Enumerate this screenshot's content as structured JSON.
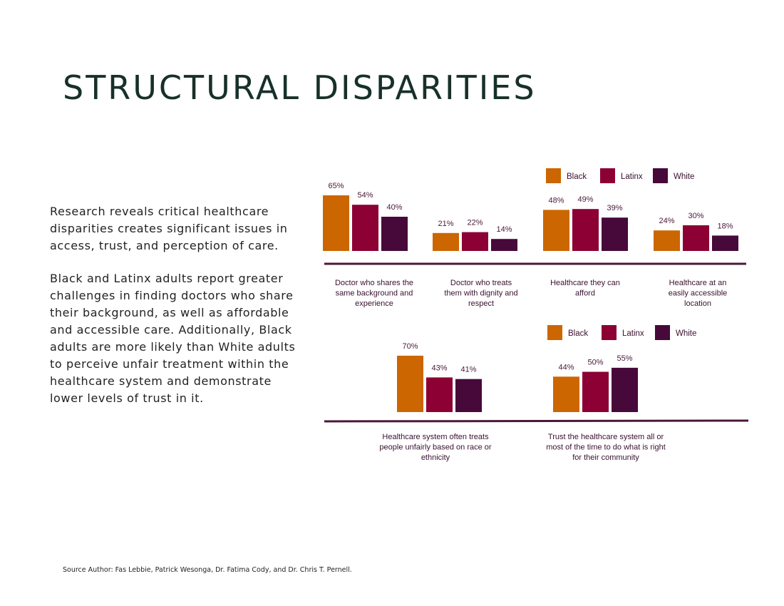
{
  "title": "STRUCTURAL DISPARITIES",
  "paragraphs": [
    "Research reveals critical healthcare disparities creates significant issues in access, trust, and perception of care.",
    "Black and Latinx adults report greater challenges in finding doctors who share their background, as well as affordable and accessible care. Additionally, Black adults are more likely than White adults to perceive unfair treatment within the healthcare system and demonstrate lower levels of trust in it."
  ],
  "source": "Source Author: Fas Lebbie, Patrick Wesonga, Dr. Fatima Cody, and Dr. Chris T. Pernell.",
  "colors": {
    "Black": "#cc6600",
    "Latinx": "#8c0034",
    "White": "#47083a",
    "axis": "#4a1838"
  },
  "chart_data": [
    {
      "type": "bar",
      "legend": [
        "Black",
        "Latinx",
        "White"
      ],
      "categories": [
        [
          "Doctor who shares the",
          "same background  and",
          "experience"
        ],
        [
          "Doctor who treats",
          "them with dignity and",
          "respect"
        ],
        [
          "Healthcare  they can",
          "afford"
        ],
        [
          "Healthcare  at an",
          "easily accessible",
          "location"
        ]
      ],
      "series": [
        {
          "name": "Black",
          "values": [
            65,
            21,
            48,
            24
          ]
        },
        {
          "name": "Latinx",
          "values": [
            54,
            22,
            49,
            30
          ]
        },
        {
          "name": "White",
          "values": [
            40,
            14,
            39,
            18
          ]
        }
      ],
      "labels": [
        [
          "65%",
          "21%",
          "48%",
          "24%"
        ],
        [
          "54%",
          "22%",
          "49%",
          "30%"
        ],
        [
          "40%",
          "14%",
          "39%",
          "18%"
        ]
      ]
    },
    {
      "type": "bar",
      "legend": [
        "Black",
        "Latinx",
        "White"
      ],
      "categories": [
        [
          "Healthcare  system often treats",
          "people unfairly  based on race or",
          "ethnicity"
        ],
        [
          "Trust the healthcare  system all or",
          "most of the time to do what is right",
          "for their community"
        ]
      ],
      "series": [
        {
          "name": "Black",
          "values": [
            70,
            44
          ]
        },
        {
          "name": "Latinx",
          "values": [
            43,
            50
          ]
        },
        {
          "name": "White",
          "values": [
            41,
            55
          ]
        }
      ],
      "labels": [
        [
          "70%",
          "44%"
        ],
        [
          "43%",
          "50%"
        ],
        [
          "41%",
          "55%"
        ]
      ]
    }
  ]
}
